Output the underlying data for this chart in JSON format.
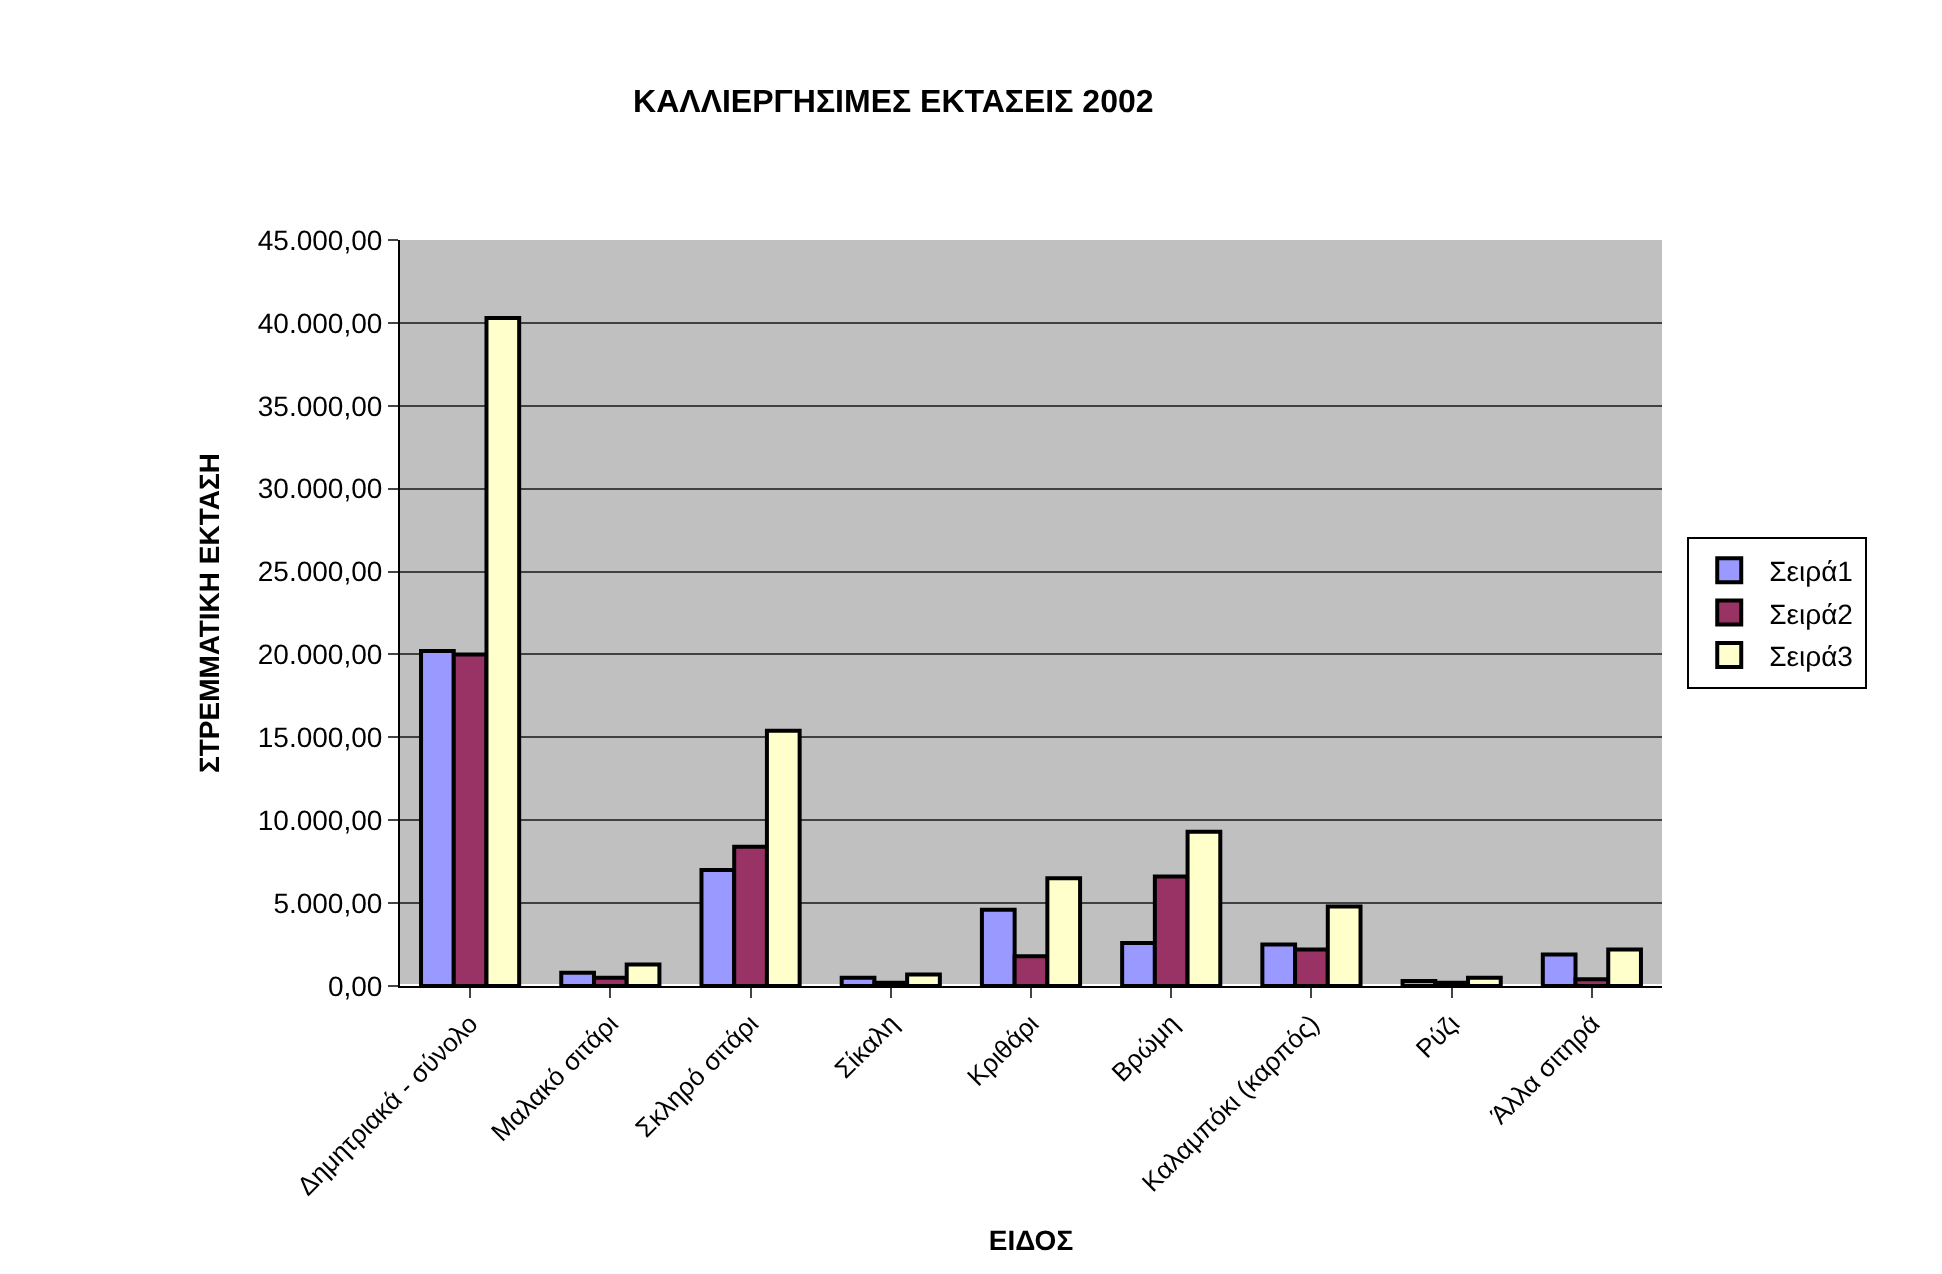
{
  "chart_data": {
    "type": "bar",
    "title": "ΚΑΛΛΙΕΡΓΗΣΙΜΕΣ ΕΚΤΑΣΕΙΣ 2002",
    "xlabel": "ΕΙΔΟΣ",
    "ylabel": "ΣΤΡΕΜΜΑΤΙΚΗ ΕΚΤΑΣΗ",
    "categories": [
      "Δημητριακά - σύνολο",
      "Μαλακό σιτάρι",
      "Σκληρό σιτάρι",
      "Σίκαλη",
      "Κριθάρι",
      "Βρώμη",
      "Καλαμπόκι (καρπός)",
      "Ρύζι",
      "Άλλα σιτηρά"
    ],
    "series": [
      {
        "name": "Σειρά1",
        "color": "#9999ff",
        "values": [
          20200,
          800,
          7000,
          500,
          4600,
          2600,
          2500,
          300,
          1900
        ]
      },
      {
        "name": "Σειρά2",
        "color": "#993366",
        "values": [
          20000,
          500,
          8400,
          200,
          1800,
          6600,
          2200,
          200,
          400
        ]
      },
      {
        "name": "Σειρά3",
        "color": "#ffffcc",
        "values": [
          40300,
          1300,
          15400,
          700,
          6500,
          9300,
          4800,
          500,
          2200
        ]
      }
    ],
    "ylim": [
      0,
      45000
    ],
    "yticks": [
      {
        "value": 0,
        "label": "0,00"
      },
      {
        "value": 5000,
        "label": "5.000,00"
      },
      {
        "value": 10000,
        "label": "10.000,00"
      },
      {
        "value": 15000,
        "label": "15.000,00"
      },
      {
        "value": 20000,
        "label": "20.000,00"
      },
      {
        "value": 25000,
        "label": "25.000,00"
      },
      {
        "value": 30000,
        "label": "30.000,00"
      },
      {
        "value": 35000,
        "label": "35.000,00"
      },
      {
        "value": 40000,
        "label": "40.000,00"
      },
      {
        "value": 45000,
        "label": "45.000,00"
      }
    ],
    "grid": "y",
    "legend": "right"
  }
}
